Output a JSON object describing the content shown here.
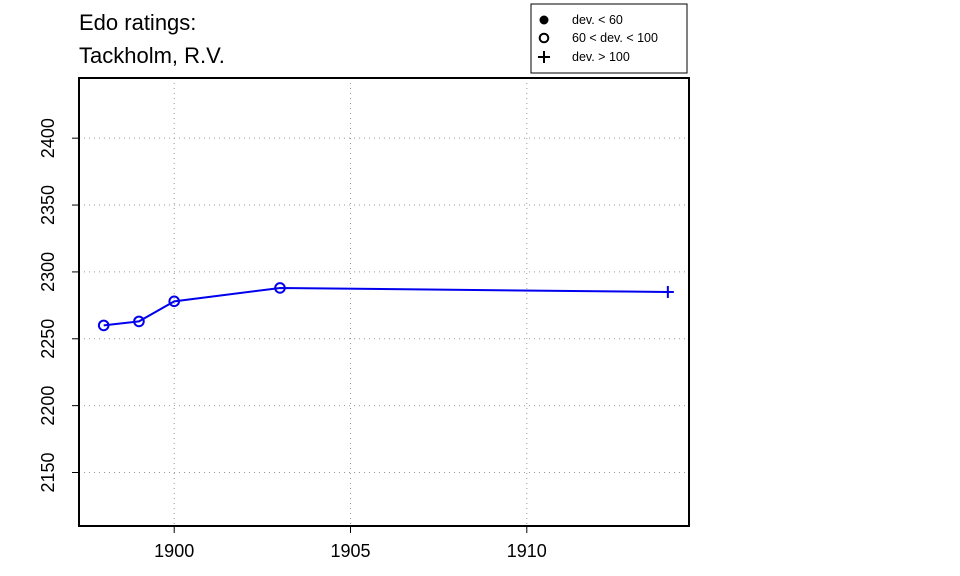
{
  "chart_data": {
    "type": "line",
    "title_lines": [
      "Edo ratings:",
      "Tackholm, R.V."
    ],
    "xlabel": "",
    "ylabel": "",
    "xlim": [
      1897.3,
      1914.6
    ],
    "ylim": [
      2110,
      2445
    ],
    "x_ticks": [
      1900,
      1905,
      1910
    ],
    "y_ticks": [
      2150,
      2200,
      2250,
      2300,
      2350,
      2400
    ],
    "grid": true,
    "legend_position": "top-right",
    "legend": [
      {
        "marker": "filled-circle",
        "label": "dev. < 60"
      },
      {
        "marker": "open-circle",
        "label": "60 < dev. < 100"
      },
      {
        "marker": "plus",
        "label": "dev. > 100"
      }
    ],
    "series": [
      {
        "color": "#0000ee",
        "points": [
          {
            "x": 1898,
            "y": 2260,
            "marker": "open-circle"
          },
          {
            "x": 1899,
            "y": 2263,
            "marker": "open-circle"
          },
          {
            "x": 1900,
            "y": 2278,
            "marker": "open-circle"
          },
          {
            "x": 1903,
            "y": 2288,
            "marker": "open-circle"
          },
          {
            "x": 1914,
            "y": 2285,
            "marker": "plus"
          }
        ]
      }
    ]
  }
}
